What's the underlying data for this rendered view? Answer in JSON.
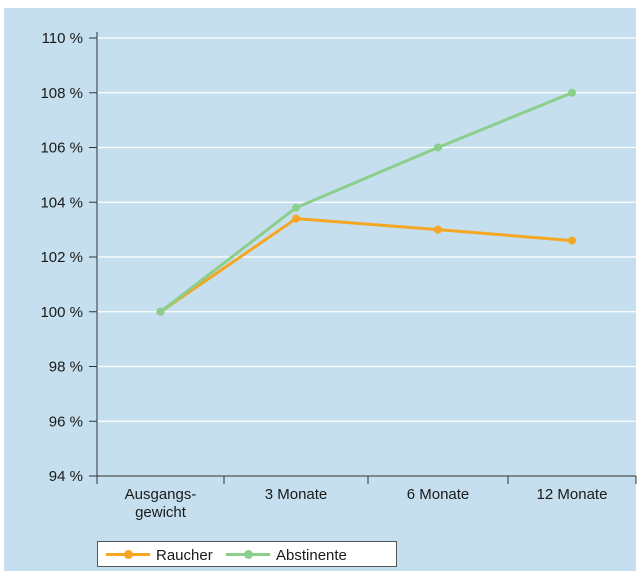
{
  "chart_data": {
    "type": "line",
    "title": "",
    "xlabel": "",
    "ylabel": "",
    "categories": [
      [
        "Ausgangs-",
        "gewicht"
      ],
      [
        "3 Monate"
      ],
      [
        "6 Monate"
      ],
      [
        "12 Monate"
      ]
    ],
    "y_ticks": [
      "94 %",
      "96 %",
      "98 %",
      "100 %",
      "102 %",
      "104 %",
      "106 %",
      "108 %",
      "110 %"
    ],
    "ylim": [
      94,
      110
    ],
    "grid": true,
    "legend_position": "bottom-left",
    "series": [
      {
        "name": "Raucher",
        "color": "#f5a623",
        "values": [
          100,
          103.4,
          103.0,
          102.6
        ]
      },
      {
        "name": "Abstinente",
        "color": "#8ccf8c",
        "values": [
          100,
          103.8,
          106.0,
          108.0
        ]
      }
    ]
  },
  "colors": {
    "background": "#c5dfee",
    "grid": "#ffffff",
    "axis": "#333333"
  }
}
